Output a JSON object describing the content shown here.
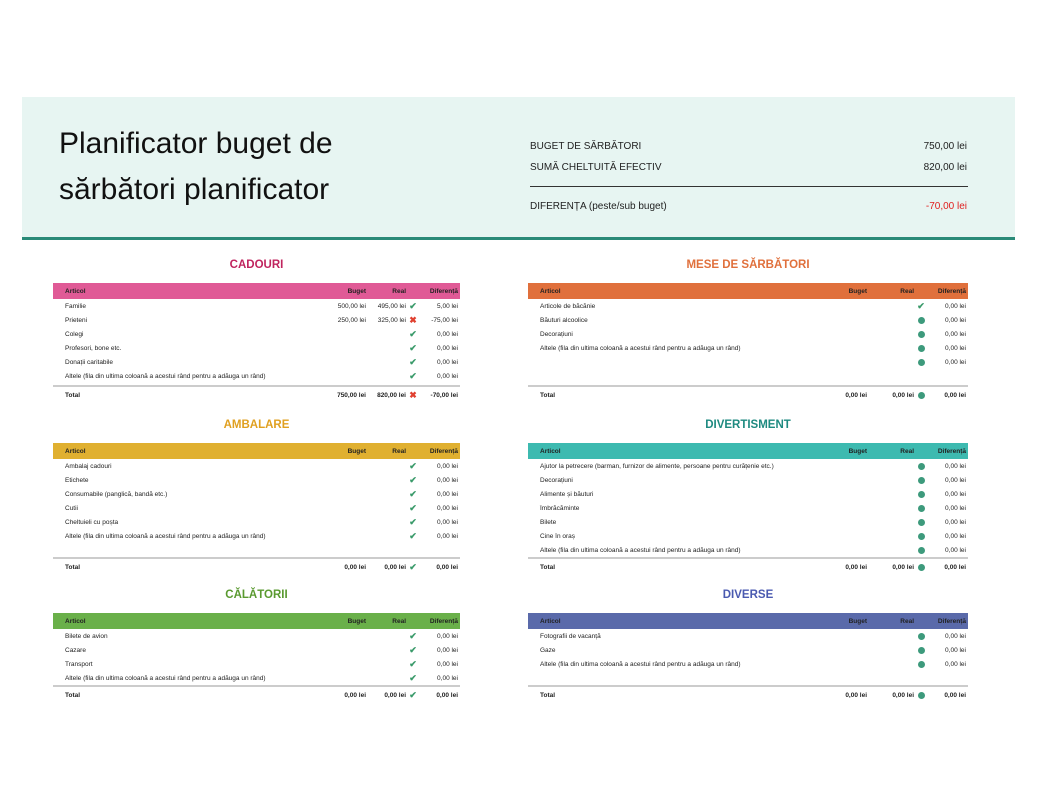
{
  "header": {
    "title": "Planificator buget de sărbători planificator",
    "budget_label": "BUGET DE SĂRBĂTORI",
    "budget_value": "750,00 lei",
    "spent_label": "SUMĂ CHELTUITĂ EFECTIV",
    "spent_value": "820,00 lei",
    "diff_label": "DIFERENȚA (peste/sub buget)",
    "diff_value": "-70,00 lei",
    "diff_color": "#e02020"
  },
  "columns": [
    "Articol",
    "Buget",
    "Real",
    "Diferență"
  ],
  "sections": [
    {
      "id": "cadouri",
      "title": "CADOURI",
      "color": "#e05a96",
      "title_color": "#c0245e",
      "side": "l",
      "top": 258,
      "h": "h1",
      "rows": [
        [
          "Familie",
          "500,00 lei",
          "495,00 lei",
          "check",
          "5,00 lei"
        ],
        [
          "Prieteni",
          "250,00 lei",
          "325,00 lei",
          "x",
          "-75,00 lei"
        ],
        [
          "Colegi",
          "",
          "",
          "check",
          "0,00 lei"
        ],
        [
          "Profesori, bone etc.",
          "",
          "",
          "check",
          "0,00 lei"
        ],
        [
          "Donații caritabile",
          "",
          "",
          "check",
          "0,00 lei"
        ],
        [
          "Altele (fila din ultima coloană a acestui rând pentru a adăuga un rând)",
          "",
          "",
          "check",
          "0,00 lei"
        ]
      ],
      "total": [
        "Total",
        "750,00 lei",
        "820,00 lei",
        "x",
        "-70,00 lei"
      ]
    },
    {
      "id": "mese",
      "title": "MESE DE SĂRBĂTORI",
      "color": "#e0703c",
      "title_color": "#e0703c",
      "side": "r",
      "top": 258,
      "h": "h1",
      "rows": [
        [
          "Articole de băcănie",
          "",
          "",
          "check",
          "0,00 lei"
        ],
        [
          "Băuturi alcoolice",
          "",
          "",
          "circle",
          "0,00 lei"
        ],
        [
          "Decorațiuni",
          "",
          "",
          "circle",
          "0,00 lei"
        ],
        [
          "Altele (fila din ultima coloană a acestui rând pentru a adăuga un rând)",
          "",
          "",
          "circle",
          "0,00 lei"
        ],
        [
          "",
          "",
          "",
          "circle",
          "0,00 lei"
        ]
      ],
      "total": [
        "Total",
        "0,00 lei",
        "0,00 lei",
        "circle",
        "0,00 lei"
      ]
    },
    {
      "id": "ambalare",
      "title": "AMBALARE",
      "color": "#e0b030",
      "title_color": "#e0a020",
      "side": "l",
      "top": 418,
      "h": "h2",
      "rows": [
        [
          "Ambalaj cadouri",
          "",
          "",
          "check",
          "0,00 lei"
        ],
        [
          "Etichete",
          "",
          "",
          "check",
          "0,00 lei"
        ],
        [
          "Consumabile (panglică, bandă etc.)",
          "",
          "",
          "check",
          "0,00 lei"
        ],
        [
          "Cutii",
          "",
          "",
          "check",
          "0,00 lei"
        ],
        [
          "Cheltuieli cu poșta",
          "",
          "",
          "check",
          "0,00 lei"
        ],
        [
          "Altele (fila din ultima coloană a acestui rând pentru a adăuga un rând)",
          "",
          "",
          "check",
          "0,00 lei"
        ]
      ],
      "total": [
        "Total",
        "0,00 lei",
        "0,00 lei",
        "check",
        "0,00 lei"
      ]
    },
    {
      "id": "divertisment",
      "title": "DIVERTISMENT",
      "color": "#3dbab0",
      "title_color": "#1e8a80",
      "side": "r",
      "top": 418,
      "h": "h2",
      "rows": [
        [
          "Ajutor la petrecere (barman, furnizor de alimente, persoane pentru curățenie etc.)",
          "",
          "",
          "circle",
          "0,00 lei"
        ],
        [
          "Decorațiuni",
          "",
          "",
          "circle",
          "0,00 lei"
        ],
        [
          "Alimente și băuturi",
          "",
          "",
          "circle",
          "0,00 lei"
        ],
        [
          "Îmbrăcăminte",
          "",
          "",
          "circle",
          "0,00 lei"
        ],
        [
          "Bilete",
          "",
          "",
          "circle",
          "0,00 lei"
        ],
        [
          "Cine în oraș",
          "",
          "",
          "circle",
          "0,00 lei"
        ],
        [
          "Altele (fila din ultima coloană a acestui rând pentru a adăuga un rând)",
          "",
          "",
          "circle",
          "0,00 lei"
        ]
      ],
      "total": [
        "Total",
        "0,00 lei",
        "0,00 lei",
        "circle",
        "0,00 lei"
      ]
    },
    {
      "id": "calatorii",
      "title": "CĂLĂTORII",
      "color": "#6ab04a",
      "title_color": "#5a9a30",
      "side": "l",
      "top": 588,
      "h": "h3",
      "rows": [
        [
          "Bilete de avion",
          "",
          "",
          "check",
          "0,00 lei"
        ],
        [
          "Cazare",
          "",
          "",
          "check",
          "0,00 lei"
        ],
        [
          "Transport",
          "",
          "",
          "check",
          "0,00 lei"
        ],
        [
          "Altele (fila din ultima coloană a acestui rând pentru a adăuga un rând)",
          "",
          "",
          "check",
          "0,00 lei"
        ]
      ],
      "total": [
        "Total",
        "0,00 lei",
        "0,00 lei",
        "check",
        "0,00 lei"
      ]
    },
    {
      "id": "diverse",
      "title": "DIVERSE",
      "color": "#5a6aaa",
      "title_color": "#4a5ab0",
      "side": "r",
      "top": 588,
      "h": "h3",
      "rows": [
        [
          "Fotografii de vacanță",
          "",
          "",
          "circle",
          "0,00 lei"
        ],
        [
          "Gaze",
          "",
          "",
          "circle",
          "0,00 lei"
        ],
        [
          "Altele (fila din ultima coloană a acestui rând pentru a adăuga un rând)",
          "",
          "",
          "circle",
          "0,00 lei"
        ]
      ],
      "total": [
        "Total",
        "0,00 lei",
        "0,00 lei",
        "circle",
        "0,00 lei"
      ]
    }
  ]
}
